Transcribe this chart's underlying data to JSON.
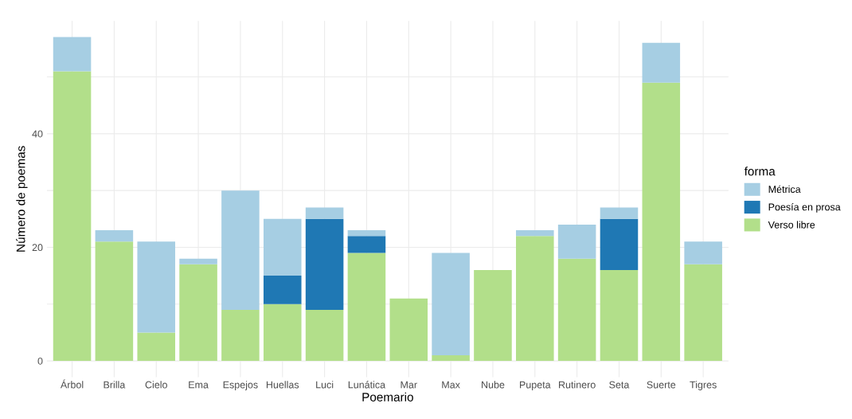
{
  "chart_data": {
    "type": "bar",
    "stacked": true,
    "xlabel": "Poemario",
    "ylabel": "Número de poemas",
    "legend_title": "forma",
    "legend": "right",
    "categories": [
      "Árbol",
      "Brilla",
      "Cielo",
      "Ema",
      "Espejos",
      "Huellas",
      "Luci",
      "Lunática",
      "Mar",
      "Max",
      "Nube",
      "Pupeta",
      "Rutinero",
      "Seta",
      "Suerte",
      "Tigres"
    ],
    "series": [
      {
        "name": "Verso libre",
        "color": "#b2df8a",
        "values": [
          51,
          21,
          5,
          17,
          9,
          10,
          9,
          19,
          11,
          1,
          16,
          22,
          18,
          16,
          49,
          17
        ]
      },
      {
        "name": "Poesía en prosa",
        "color": "#1f78b4",
        "values": [
          0,
          0,
          0,
          0,
          0,
          5,
          16,
          3,
          0,
          0,
          0,
          0,
          0,
          9,
          0,
          0
        ]
      },
      {
        "name": "Métrica",
        "color": "#a6cee3",
        "values": [
          6,
          2,
          16,
          1,
          21,
          10,
          2,
          1,
          0,
          18,
          0,
          1,
          6,
          2,
          7,
          4
        ]
      }
    ],
    "ylim": [
      -2.85,
      59.85
    ],
    "yticks": [
      0,
      {
        "value": 10,
        "label": null
      },
      20,
      {
        "value": 30,
        "label": null
      },
      40,
      {
        "value": 50,
        "label": null
      }
    ],
    "grid": true
  }
}
